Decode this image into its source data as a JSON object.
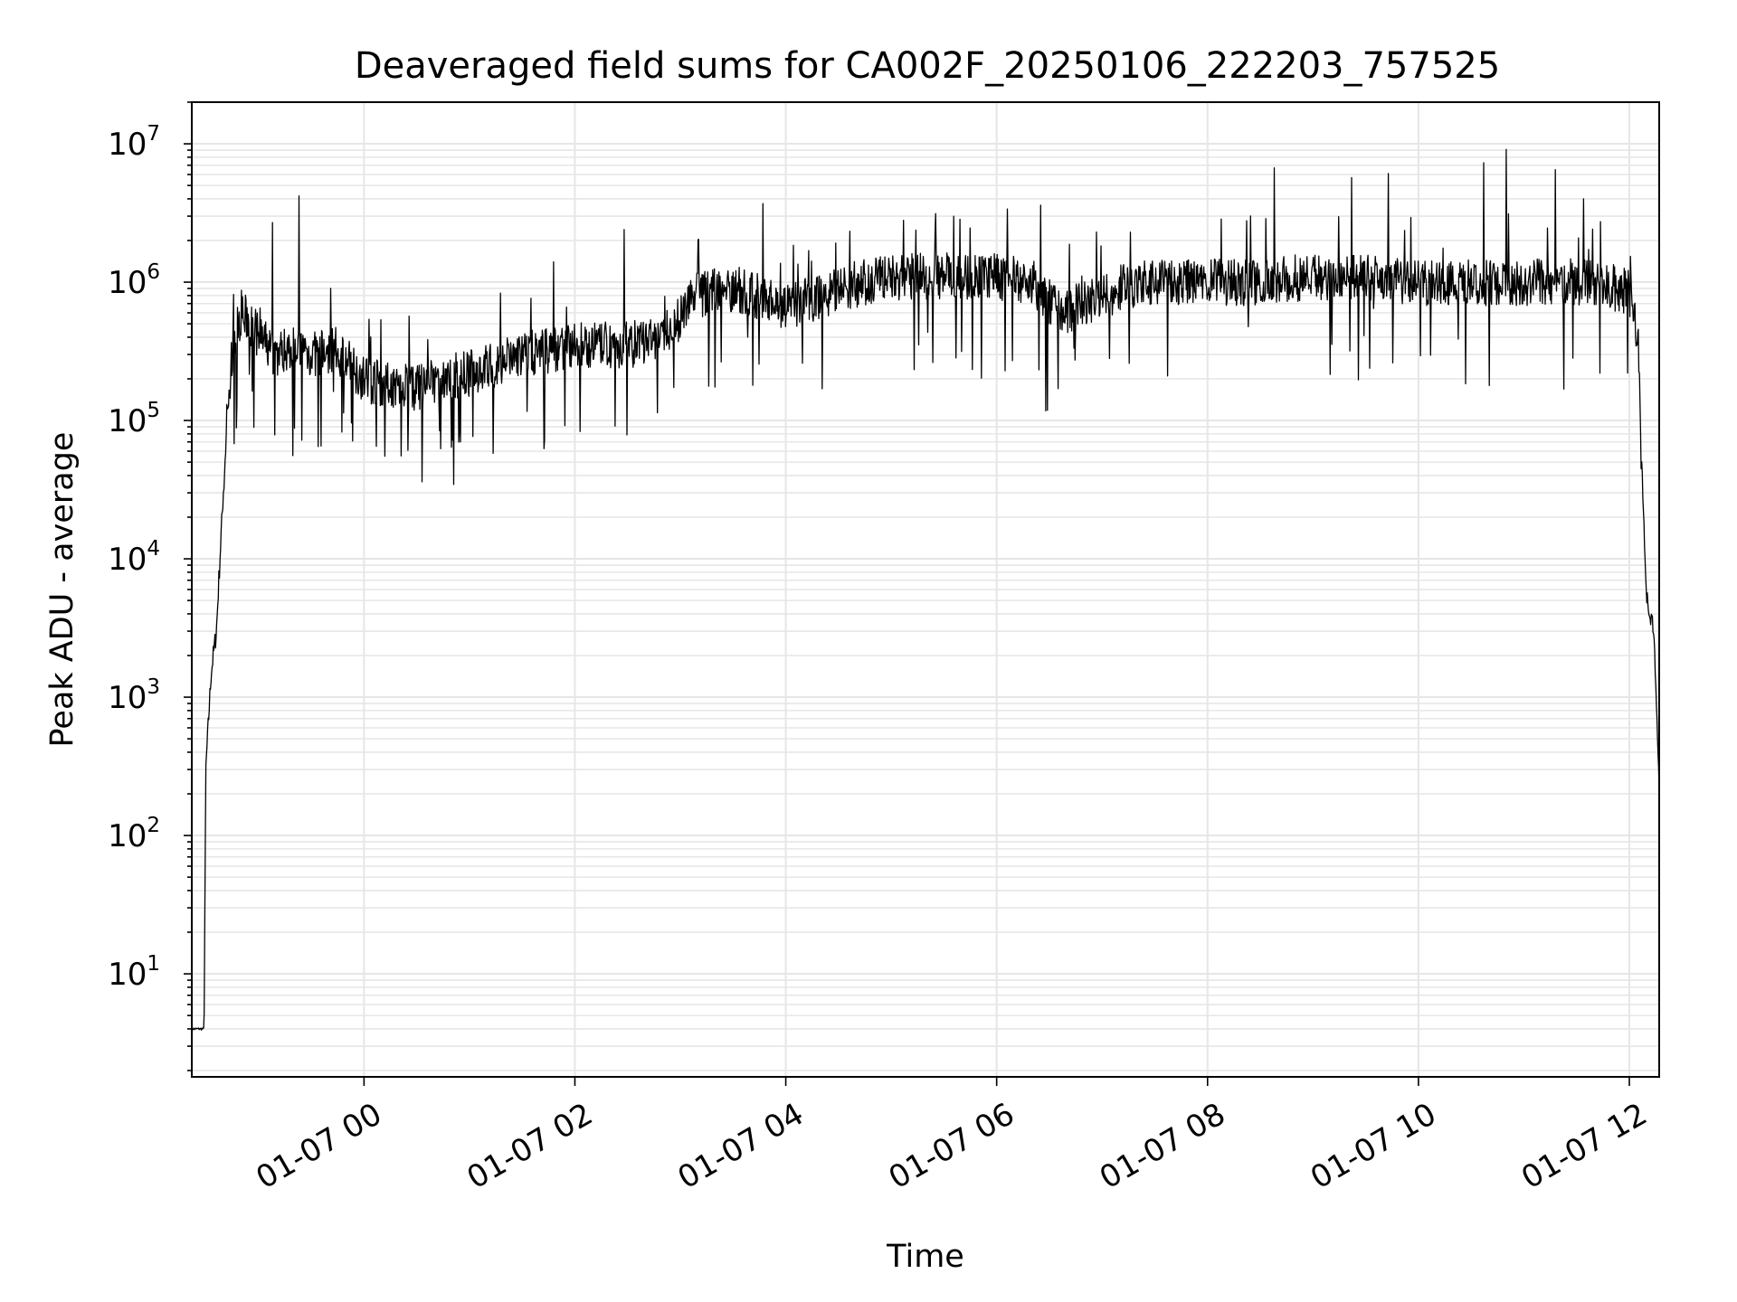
{
  "chart_data": {
    "type": "line",
    "title": "Deaveraged field sums for CA002F_20250106_222203_757525",
    "xlabel": "Time",
    "ylabel": "Peak ADU - average",
    "yscale": "log",
    "ylim": [
      1.8,
      20000000
    ],
    "xlim": [
      "01-06 22:22",
      "01-07 12:17"
    ],
    "grid": true,
    "line_color": "#000000",
    "grid_color": "#e6e6e6",
    "x_ticks": [
      "01-07 00",
      "01-07 02",
      "01-07 04",
      "01-07 06",
      "01-07 08",
      "01-07 10",
      "01-07 12"
    ],
    "y_ticks": [
      {
        "base": "10",
        "exp": "1",
        "value": 10
      },
      {
        "base": "10",
        "exp": "2",
        "value": 100
      },
      {
        "base": "10",
        "exp": "3",
        "value": 1000
      },
      {
        "base": "10",
        "exp": "4",
        "value": 10000
      },
      {
        "base": "10",
        "exp": "5",
        "value": 100000
      },
      {
        "base": "10",
        "exp": "6",
        "value": 1000000
      },
      {
        "base": "10",
        "exp": "7",
        "value": 10000000
      }
    ],
    "series": [
      {
        "x": [
          "01-06 22:22",
          "01-06 22:29",
          "01-06 22:30",
          "01-06 22:33",
          "01-06 22:36",
          "01-06 22:38",
          "01-06 22:42",
          "01-06 22:45",
          "01-06 22:50",
          "01-06 22:55",
          "01-06 23:00",
          "01-06 23:10",
          "01-06 23:20",
          "01-06 23:30",
          "01-06 23:45",
          "01-07 00:00",
          "01-07 00:15",
          "01-07 00:30",
          "01-07 00:45",
          "01-07 01:00",
          "01-07 01:30",
          "01-07 02:00",
          "01-07 02:30",
          "01-07 02:55",
          "01-07 03:05",
          "01-07 03:30",
          "01-07 03:50",
          "01-07 04:00",
          "01-07 04:30",
          "01-07 05:00",
          "01-07 05:30",
          "01-07 06:00",
          "01-07 06:20",
          "01-07 06:35",
          "01-07 06:50",
          "01-07 07:10",
          "01-07 07:30",
          "01-07 08:00",
          "01-07 08:30",
          "01-07 09:00",
          "01-07 09:30",
          "01-07 10:00",
          "01-07 10:30",
          "01-07 11:00",
          "01-07 11:30",
          "01-07 11:55",
          "01-07 12:02",
          "01-07 12:05",
          "01-07 12:07",
          "01-07 12:10",
          "01-07 12:14",
          "01-07 12:17"
        ],
        "y": [
          4,
          4,
          300,
          1500,
          3000,
          10000,
          100000,
          300000,
          600000,
          500000,
          400000,
          300000,
          350000,
          300000,
          320000,
          200000,
          180000,
          170000,
          200000,
          220000,
          300000,
          350000,
          350000,
          400000,
          800000,
          900000,
          750000,
          650000,
          900000,
          1100000,
          1100000,
          1100000,
          1000000,
          600000,
          700000,
          900000,
          1000000,
          1000000,
          1000000,
          1100000,
          1100000,
          1000000,
          1000000,
          1000000,
          1000000,
          900000,
          800000,
          350000,
          50000,
          5000,
          3000,
          200
        ]
      }
    ],
    "spikes": [
      {
        "x": "01-06 23:08",
        "y": 2700000
      },
      {
        "x": "01-06 23:23",
        "y": 4200000
      },
      {
        "x": "01-07 01:48",
        "y": 1400000
      },
      {
        "x": "01-07 02:28",
        "y": 2400000
      },
      {
        "x": "01-07 03:47",
        "y": 3700000
      },
      {
        "x": "01-07 06:25",
        "y": 3600000
      },
      {
        "x": "01-07 08:38",
        "y": 6700000
      },
      {
        "x": "01-07 09:22",
        "y": 5700000
      },
      {
        "x": "01-07 09:43",
        "y": 6100000
      },
      {
        "x": "01-07 10:37",
        "y": 7300000
      },
      {
        "x": "01-07 10:50",
        "y": 9100000
      },
      {
        "x": "01-07 11:18",
        "y": 6500000
      },
      {
        "x": "01-07 11:34",
        "y": 4000000
      },
      {
        "x": "01-07 06:35",
        "y": 170000
      },
      {
        "x": "01-07 00:33",
        "y": 36000
      }
    ]
  }
}
